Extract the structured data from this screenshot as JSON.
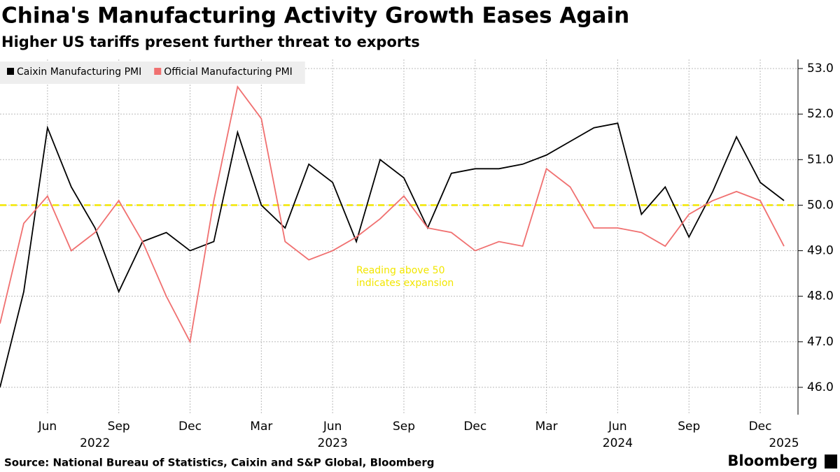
{
  "chart_data": {
    "type": "line",
    "title": "China's Manufacturing Activity Growth Eases Again",
    "subtitle": "Higher US tariffs present further threat to exports",
    "source": "Source: National Bureau of Statistics, Caixin and S&P Global, Bloomberg",
    "brand": "Bloomberg",
    "x": [
      "2022-04",
      "2022-05",
      "2022-06",
      "2022-07",
      "2022-08",
      "2022-09",
      "2022-10",
      "2022-11",
      "2022-12",
      "2023-01",
      "2023-02",
      "2023-03",
      "2023-04",
      "2023-05",
      "2023-06",
      "2023-07",
      "2023-08",
      "2023-09",
      "2023-10",
      "2023-11",
      "2023-12",
      "2024-01",
      "2024-02",
      "2024-03",
      "2024-04",
      "2024-05",
      "2024-06",
      "2024-07",
      "2024-08",
      "2024-09",
      "2024-10",
      "2024-11",
      "2024-12",
      "2025-01"
    ],
    "series": [
      {
        "name": "Caixin Manufacturing PMI",
        "color": "#000000",
        "values": [
          46.0,
          48.1,
          51.7,
          50.4,
          49.5,
          48.1,
          49.2,
          49.4,
          49.0,
          49.2,
          51.6,
          50.0,
          49.5,
          50.9,
          50.5,
          49.2,
          51.0,
          50.6,
          49.5,
          50.7,
          50.8,
          50.8,
          50.9,
          51.1,
          51.4,
          51.7,
          51.8,
          49.8,
          50.4,
          49.3,
          50.3,
          51.5,
          50.5,
          50.1
        ]
      },
      {
        "name": "Official Manufacturing PMI",
        "color": "#f07070",
        "values": [
          47.4,
          49.6,
          50.2,
          49.0,
          49.4,
          50.1,
          49.2,
          48.0,
          47.0,
          50.1,
          52.6,
          51.9,
          49.2,
          48.8,
          49.0,
          49.3,
          49.7,
          50.2,
          49.5,
          49.4,
          49.0,
          49.2,
          49.1,
          50.8,
          50.4,
          49.5,
          49.5,
          49.4,
          49.1,
          49.8,
          50.1,
          50.3,
          50.1,
          49.1
        ]
      }
    ],
    "xlim": [
      "2022-04",
      "2025-01"
    ],
    "xticks": [
      {
        "value": "2022-06",
        "label": "Jun"
      },
      {
        "value": "2022-09",
        "label": "Sep"
      },
      {
        "value": "2022-12",
        "label": "Dec"
      },
      {
        "value": "2023-03",
        "label": "Mar"
      },
      {
        "value": "2023-06",
        "label": "Jun"
      },
      {
        "value": "2023-09",
        "label": "Sep"
      },
      {
        "value": "2023-12",
        "label": "Dec"
      },
      {
        "value": "2024-03",
        "label": "Mar"
      },
      {
        "value": "2024-06",
        "label": "Jun"
      },
      {
        "value": "2024-09",
        "label": "Sep"
      },
      {
        "value": "2024-12",
        "label": "Dec"
      }
    ],
    "year_labels": [
      {
        "value": "2022-08",
        "label": "2022"
      },
      {
        "value": "2023-06",
        "label": "2023"
      },
      {
        "value": "2024-06",
        "label": "2024"
      },
      {
        "value": "2025-01",
        "label": "2025"
      }
    ],
    "ylim": [
      45.4,
      53.2
    ],
    "yticks": [
      {
        "value": 46,
        "label": "46.0"
      },
      {
        "value": 47,
        "label": "47.0"
      },
      {
        "value": 48,
        "label": "48.0"
      },
      {
        "value": 49,
        "label": "49.0"
      },
      {
        "value": 50,
        "label": "50.0"
      },
      {
        "value": 51,
        "label": "51.0"
      },
      {
        "value": 52,
        "label": "52.0"
      },
      {
        "value": 53,
        "label": "53.0"
      }
    ],
    "reference_line": {
      "value": 50,
      "color": "#f2e600"
    },
    "annotation": [
      "Reading above 50",
      "indicates expansion"
    ],
    "grid": true,
    "legend": "top-left"
  }
}
